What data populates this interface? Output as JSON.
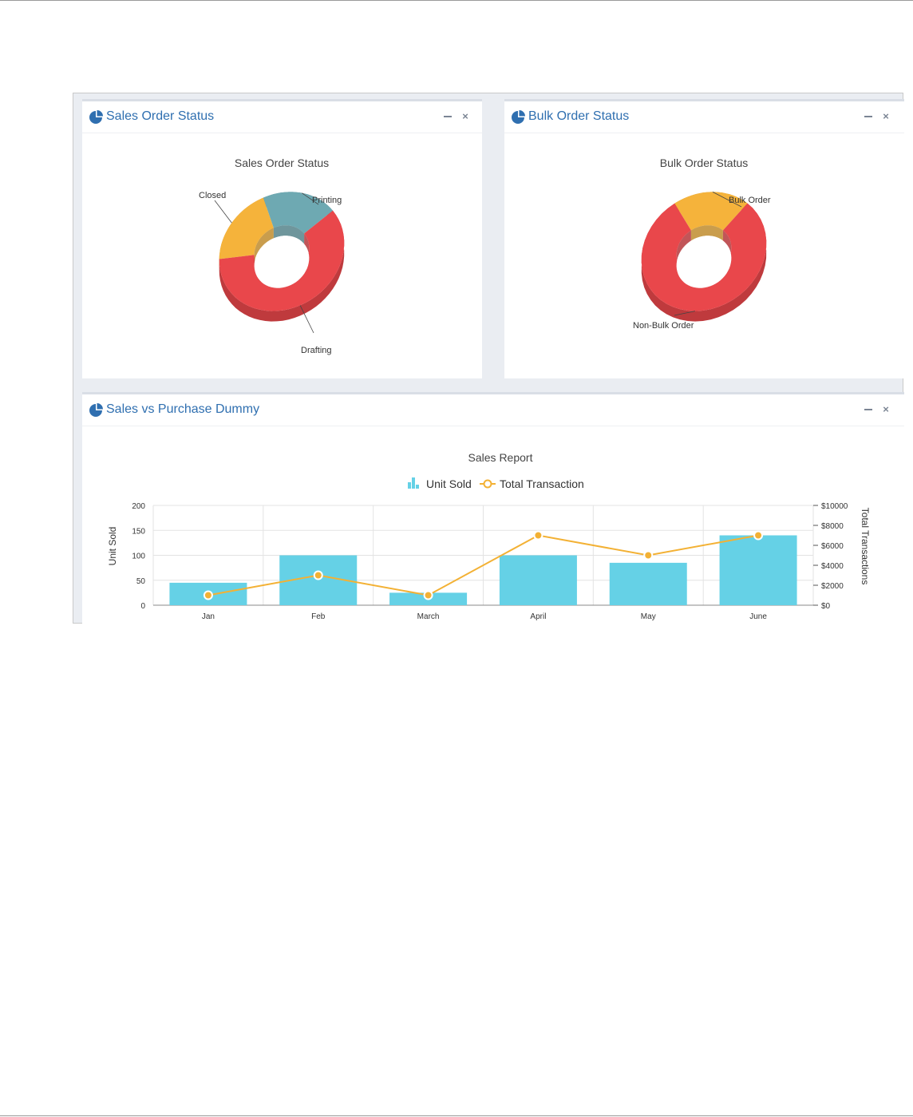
{
  "panels": [
    {
      "title": "Sales Order Status",
      "chart_title": "Sales Order Status",
      "minimize_label": "−",
      "close_label": "×"
    },
    {
      "title": "Bulk Order Status",
      "chart_title": "Bulk Order Status",
      "minimize_label": "−",
      "close_label": "×"
    },
    {
      "title": "Sales vs Purchase Dummy",
      "chart_title": "Sales Report",
      "minimize_label": "−",
      "close_label": "×"
    }
  ],
  "colors": {
    "accent_blue": "#2f6fb0",
    "orange": "#f5b33b",
    "teal": "#6ea9b2",
    "red": "#e9474b",
    "bar_cyan": "#65d1e6",
    "line_orange": "#f3b134"
  },
  "icons": {
    "panel": "pie-chart-icon",
    "minimize": "minimize-icon",
    "close": "close-icon"
  },
  "chart_data": [
    {
      "type": "pie",
      "variant": "3d-doughnut",
      "title": "Sales Order Status",
      "labels": [
        "Closed",
        "Printing",
        "Drafting"
      ],
      "values": [
        20,
        20,
        60
      ],
      "colors": [
        "#f5b33b",
        "#6ea9b2",
        "#e9474b"
      ]
    },
    {
      "type": "pie",
      "variant": "3d-doughnut",
      "title": "Bulk Order Status",
      "labels": [
        "Bulk Order",
        "Non-Bulk Order"
      ],
      "values": [
        20,
        80
      ],
      "colors": [
        "#f5b33b",
        "#e9474b"
      ]
    },
    {
      "type": "bar",
      "title": "Sales Report",
      "categories": [
        "Jan",
        "Feb",
        "March",
        "April",
        "May",
        "June"
      ],
      "series": [
        {
          "name": "Unit Sold",
          "type": "bar",
          "axis": "left",
          "values": [
            45,
            100,
            25,
            100,
            85,
            140
          ],
          "color": "#65d1e6"
        },
        {
          "name": "Total Transaction",
          "type": "line",
          "axis": "right",
          "values": [
            1000,
            3000,
            1000,
            7000,
            5000,
            7000
          ],
          "color": "#f3b134"
        }
      ],
      "ylabel": "Unit Sold",
      "y2label": "Total Transactions",
      "ylim": [
        0,
        200
      ],
      "yticks": [
        "0",
        "50",
        "100",
        "150",
        "200"
      ],
      "y2lim": [
        0,
        10000
      ],
      "y2ticks": [
        "$0",
        "$2000",
        "$4000",
        "$6000",
        "$8000",
        "$10000"
      ],
      "legend": "top-center",
      "grid": true
    }
  ]
}
